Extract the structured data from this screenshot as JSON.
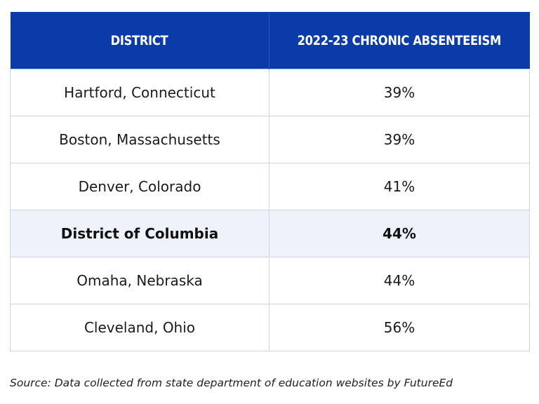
{
  "chart_data": {
    "type": "table",
    "columns": [
      "DISTRICT",
      "2022-23 CHRONIC ABSENTEEISM"
    ],
    "rows": [
      {
        "district": "Hartford, Connecticut",
        "value": "39%",
        "highlight": false
      },
      {
        "district": "Boston, Massachusetts",
        "value": "39%",
        "highlight": false
      },
      {
        "district": "Denver, Colorado",
        "value": "41%",
        "highlight": false
      },
      {
        "district": "District of Columbia",
        "value": "44%",
        "highlight": true
      },
      {
        "district": "Omaha, Nebraska",
        "value": "44%",
        "highlight": false
      },
      {
        "district": "Cleveland, Ohio",
        "value": "56%",
        "highlight": false
      }
    ]
  },
  "source": "Source: Data collected from state department of education websites by FutureEd",
  "colors": {
    "header_background": "#0b3ba8",
    "header_text": "#ffffff",
    "highlight_row": "#eef2fb",
    "border": "#cfd3e6"
  }
}
